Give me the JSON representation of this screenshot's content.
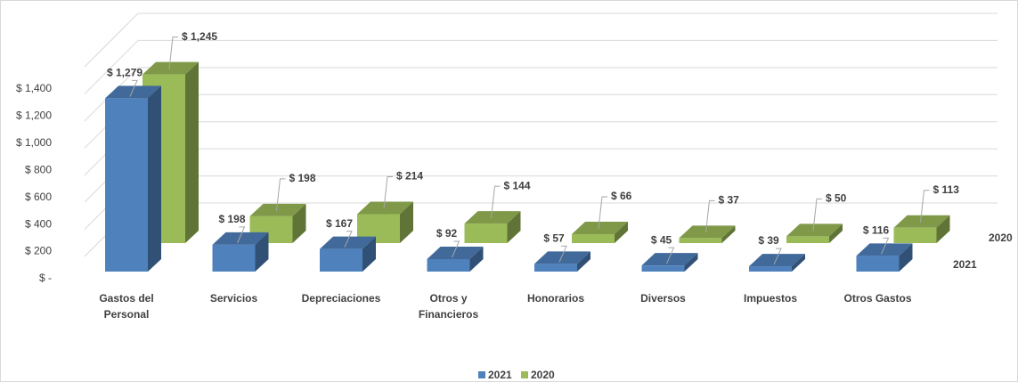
{
  "chart_data": {
    "type": "bar3d",
    "categories": [
      "Gastos del Personal",
      "Servicios",
      "Depreciaciones",
      "Otros y Financieros",
      "Honorarios",
      "Diversos",
      "Impuestos",
      "Otros Gastos"
    ],
    "series": [
      {
        "name": "2021",
        "color": "#4f81bd",
        "values": [
          1279,
          198,
          167,
          92,
          57,
          45,
          39,
          116
        ],
        "value_labels": [
          "$ 1,279",
          "$ 198",
          "$ 167",
          "$ 92",
          "$ 57",
          "$ 45",
          "$ 39",
          "$ 116"
        ]
      },
      {
        "name": "2020",
        "color": "#9bbb59",
        "values": [
          1245,
          198,
          214,
          144,
          66,
          37,
          50,
          113
        ],
        "value_labels": [
          "$ 1,245",
          "$ 198",
          "$ 214",
          "$ 144",
          "$ 66",
          "$ 37",
          "$ 50",
          "$ 113"
        ]
      }
    ],
    "ylim": [
      0,
      1400
    ],
    "yticks": [
      {
        "value": 0,
        "label": "$ -"
      },
      {
        "value": 200,
        "label": "$ 200"
      },
      {
        "value": 400,
        "label": "$ 400"
      },
      {
        "value": 600,
        "label": "$ 600"
      },
      {
        "value": 800,
        "label": "$ 800"
      },
      {
        "value": 1000,
        "label": "$ 1,000"
      },
      {
        "value": 1200,
        "label": "$ 1,200"
      },
      {
        "value": 1400,
        "label": "$ 1,400"
      }
    ],
    "grid": true,
    "legend": "bottom"
  }
}
